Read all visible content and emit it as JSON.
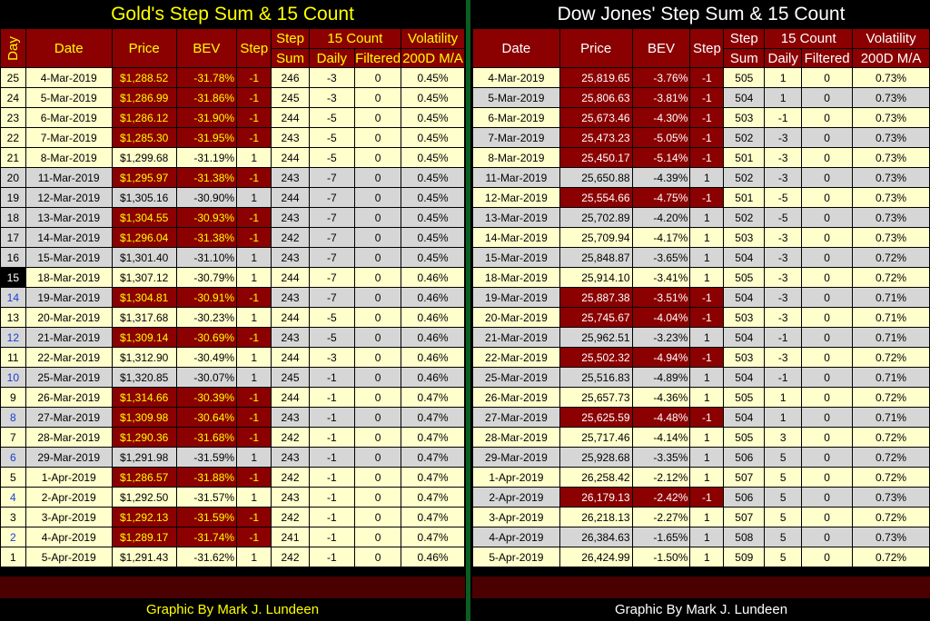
{
  "gold": {
    "title": "Gold's Step Sum & 15 Count",
    "headers": {
      "day": "Day",
      "date": "Date",
      "price": "Price",
      "bev": "BEV",
      "step": "Step",
      "step_sum_1": "Step",
      "step_sum_2": "Sum",
      "count_group": "15 Count",
      "daily": "Daily",
      "filtered": "Filtered",
      "vol_1": "Volatility",
      "vol_2": "200D M/A"
    },
    "rows": [
      {
        "day": "25",
        "date": "4-Mar-2019",
        "price": "$1,288.52",
        "bev": "-31.78%",
        "step": "-1",
        "sum": "246",
        "daily": "-3",
        "filtered": "0",
        "vol": "0.45%"
      },
      {
        "day": "24",
        "date": "5-Mar-2019",
        "price": "$1,286.99",
        "bev": "-31.86%",
        "step": "-1",
        "sum": "245",
        "daily": "-3",
        "filtered": "0",
        "vol": "0.45%"
      },
      {
        "day": "23",
        "date": "6-Mar-2019",
        "price": "$1,286.12",
        "bev": "-31.90%",
        "step": "-1",
        "sum": "244",
        "daily": "-5",
        "filtered": "0",
        "vol": "0.45%"
      },
      {
        "day": "22",
        "date": "7-Mar-2019",
        "price": "$1,285.30",
        "bev": "-31.95%",
        "step": "-1",
        "sum": "243",
        "daily": "-5",
        "filtered": "0",
        "vol": "0.45%"
      },
      {
        "day": "21",
        "date": "8-Mar-2019",
        "price": "$1,299.68",
        "bev": "-31.19%",
        "step": "1",
        "sum": "244",
        "daily": "-5",
        "filtered": "0",
        "vol": "0.45%"
      },
      {
        "day": "20",
        "date": "11-Mar-2019",
        "price": "$1,295.97",
        "bev": "-31.38%",
        "step": "-1",
        "sum": "243",
        "daily": "-7",
        "filtered": "0",
        "vol": "0.45%"
      },
      {
        "day": "19",
        "date": "12-Mar-2019",
        "price": "$1,305.16",
        "bev": "-30.90%",
        "step": "1",
        "sum": "244",
        "daily": "-7",
        "filtered": "0",
        "vol": "0.45%"
      },
      {
        "day": "18",
        "date": "13-Mar-2019",
        "price": "$1,304.55",
        "bev": "-30.93%",
        "step": "-1",
        "sum": "243",
        "daily": "-7",
        "filtered": "0",
        "vol": "0.45%"
      },
      {
        "day": "17",
        "date": "14-Mar-2019",
        "price": "$1,296.04",
        "bev": "-31.38%",
        "step": "-1",
        "sum": "242",
        "daily": "-7",
        "filtered": "0",
        "vol": "0.45%"
      },
      {
        "day": "16",
        "date": "15-Mar-2019",
        "price": "$1,301.40",
        "bev": "-31.10%",
        "step": "1",
        "sum": "243",
        "daily": "-7",
        "filtered": "0",
        "vol": "0.45%"
      },
      {
        "day": "15",
        "date": "18-Mar-2019",
        "price": "$1,307.12",
        "bev": "-30.79%",
        "step": "1",
        "sum": "244",
        "daily": "-7",
        "filtered": "0",
        "vol": "0.46%"
      },
      {
        "day": "14",
        "date": "19-Mar-2019",
        "price": "$1,304.81",
        "bev": "-30.91%",
        "step": "-1",
        "sum": "243",
        "daily": "-7",
        "filtered": "0",
        "vol": "0.46%"
      },
      {
        "day": "13",
        "date": "20-Mar-2019",
        "price": "$1,317.68",
        "bev": "-30.23%",
        "step": "1",
        "sum": "244",
        "daily": "-5",
        "filtered": "0",
        "vol": "0.46%"
      },
      {
        "day": "12",
        "date": "21-Mar-2019",
        "price": "$1,309.14",
        "bev": "-30.69%",
        "step": "-1",
        "sum": "243",
        "daily": "-5",
        "filtered": "0",
        "vol": "0.46%"
      },
      {
        "day": "11",
        "date": "22-Mar-2019",
        "price": "$1,312.90",
        "bev": "-30.49%",
        "step": "1",
        "sum": "244",
        "daily": "-3",
        "filtered": "0",
        "vol": "0.46%"
      },
      {
        "day": "10",
        "date": "25-Mar-2019",
        "price": "$1,320.85",
        "bev": "-30.07%",
        "step": "1",
        "sum": "245",
        "daily": "-1",
        "filtered": "0",
        "vol": "0.46%"
      },
      {
        "day": "9",
        "date": "26-Mar-2019",
        "price": "$1,314.66",
        "bev": "-30.39%",
        "step": "-1",
        "sum": "244",
        "daily": "-1",
        "filtered": "0",
        "vol": "0.47%"
      },
      {
        "day": "8",
        "date": "27-Mar-2019",
        "price": "$1,309.98",
        "bev": "-30.64%",
        "step": "-1",
        "sum": "243",
        "daily": "-1",
        "filtered": "0",
        "vol": "0.47%"
      },
      {
        "day": "7",
        "date": "28-Mar-2019",
        "price": "$1,290.36",
        "bev": "-31.68%",
        "step": "-1",
        "sum": "242",
        "daily": "-1",
        "filtered": "0",
        "vol": "0.47%"
      },
      {
        "day": "6",
        "date": "29-Mar-2019",
        "price": "$1,291.98",
        "bev": "-31.59%",
        "step": "1",
        "sum": "243",
        "daily": "-1",
        "filtered": "0",
        "vol": "0.47%"
      },
      {
        "day": "5",
        "date": "1-Apr-2019",
        "price": "$1,286.57",
        "bev": "-31.88%",
        "step": "-1",
        "sum": "242",
        "daily": "-1",
        "filtered": "0",
        "vol": "0.47%"
      },
      {
        "day": "4",
        "date": "2-Apr-2019",
        "price": "$1,292.50",
        "bev": "-31.57%",
        "step": "1",
        "sum": "243",
        "daily": "-1",
        "filtered": "0",
        "vol": "0.47%"
      },
      {
        "day": "3",
        "date": "3-Apr-2019",
        "price": "$1,292.13",
        "bev": "-31.59%",
        "step": "-1",
        "sum": "242",
        "daily": "-1",
        "filtered": "0",
        "vol": "0.47%"
      },
      {
        "day": "2",
        "date": "4-Apr-2019",
        "price": "$1,289.17",
        "bev": "-31.74%",
        "step": "-1",
        "sum": "241",
        "daily": "-1",
        "filtered": "0",
        "vol": "0.47%"
      },
      {
        "day": "1",
        "date": "5-Apr-2019",
        "price": "$1,291.43",
        "bev": "-31.62%",
        "step": "1",
        "sum": "242",
        "daily": "-1",
        "filtered": "0",
        "vol": "0.46%"
      }
    ],
    "footer": "Graphic By Mark J. Lundeen"
  },
  "dow": {
    "title": "Dow Jones' Step Sum & 15 Count",
    "headers": {
      "date": "Date",
      "price": "Price",
      "bev": "BEV",
      "step": "Step",
      "step_sum_1": "Step",
      "step_sum_2": "Sum",
      "count_group": "15 Count",
      "daily": "Daily",
      "filtered": "Filtered",
      "vol_1": "Volatility",
      "vol_2": "200D M/A"
    },
    "rows": [
      {
        "date": "4-Mar-2019",
        "price": "25,819.65",
        "bev": "-3.76%",
        "step": "-1",
        "sum": "505",
        "daily": "1",
        "filtered": "0",
        "vol": "0.73%"
      },
      {
        "date": "5-Mar-2019",
        "price": "25,806.63",
        "bev": "-3.81%",
        "step": "-1",
        "sum": "504",
        "daily": "1",
        "filtered": "0",
        "vol": "0.73%"
      },
      {
        "date": "6-Mar-2019",
        "price": "25,673.46",
        "bev": "-4.30%",
        "step": "-1",
        "sum": "503",
        "daily": "-1",
        "filtered": "0",
        "vol": "0.73%"
      },
      {
        "date": "7-Mar-2019",
        "price": "25,473.23",
        "bev": "-5.05%",
        "step": "-1",
        "sum": "502",
        "daily": "-3",
        "filtered": "0",
        "vol": "0.73%"
      },
      {
        "date": "8-Mar-2019",
        "price": "25,450.17",
        "bev": "-5.14%",
        "step": "-1",
        "sum": "501",
        "daily": "-3",
        "filtered": "0",
        "vol": "0.73%"
      },
      {
        "date": "11-Mar-2019",
        "price": "25,650.88",
        "bev": "-4.39%",
        "step": "1",
        "sum": "502",
        "daily": "-3",
        "filtered": "0",
        "vol": "0.73%"
      },
      {
        "date": "12-Mar-2019",
        "price": "25,554.66",
        "bev": "-4.75%",
        "step": "-1",
        "sum": "501",
        "daily": "-5",
        "filtered": "0",
        "vol": "0.73%"
      },
      {
        "date": "13-Mar-2019",
        "price": "25,702.89",
        "bev": "-4.20%",
        "step": "1",
        "sum": "502",
        "daily": "-5",
        "filtered": "0",
        "vol": "0.73%"
      },
      {
        "date": "14-Mar-2019",
        "price": "25,709.94",
        "bev": "-4.17%",
        "step": "1",
        "sum": "503",
        "daily": "-3",
        "filtered": "0",
        "vol": "0.73%"
      },
      {
        "date": "15-Mar-2019",
        "price": "25,848.87",
        "bev": "-3.65%",
        "step": "1",
        "sum": "504",
        "daily": "-3",
        "filtered": "0",
        "vol": "0.72%"
      },
      {
        "date": "18-Mar-2019",
        "price": "25,914.10",
        "bev": "-3.41%",
        "step": "1",
        "sum": "505",
        "daily": "-3",
        "filtered": "0",
        "vol": "0.72%"
      },
      {
        "date": "19-Mar-2019",
        "price": "25,887.38",
        "bev": "-3.51%",
        "step": "-1",
        "sum": "504",
        "daily": "-3",
        "filtered": "0",
        "vol": "0.71%"
      },
      {
        "date": "20-Mar-2019",
        "price": "25,745.67",
        "bev": "-4.04%",
        "step": "-1",
        "sum": "503",
        "daily": "-3",
        "filtered": "0",
        "vol": "0.71%"
      },
      {
        "date": "21-Mar-2019",
        "price": "25,962.51",
        "bev": "-3.23%",
        "step": "1",
        "sum": "504",
        "daily": "-1",
        "filtered": "0",
        "vol": "0.71%"
      },
      {
        "date": "22-Mar-2019",
        "price": "25,502.32",
        "bev": "-4.94%",
        "step": "-1",
        "sum": "503",
        "daily": "-3",
        "filtered": "0",
        "vol": "0.72%"
      },
      {
        "date": "25-Mar-2019",
        "price": "25,516.83",
        "bev": "-4.89%",
        "step": "1",
        "sum": "504",
        "daily": "-1",
        "filtered": "0",
        "vol": "0.71%"
      },
      {
        "date": "26-Mar-2019",
        "price": "25,657.73",
        "bev": "-4.36%",
        "step": "1",
        "sum": "505",
        "daily": "1",
        "filtered": "0",
        "vol": "0.72%"
      },
      {
        "date": "27-Mar-2019",
        "price": "25,625.59",
        "bev": "-4.48%",
        "step": "-1",
        "sum": "504",
        "daily": "1",
        "filtered": "0",
        "vol": "0.71%"
      },
      {
        "date": "28-Mar-2019",
        "price": "25,717.46",
        "bev": "-4.14%",
        "step": "1",
        "sum": "505",
        "daily": "3",
        "filtered": "0",
        "vol": "0.72%"
      },
      {
        "date": "29-Mar-2019",
        "price": "25,928.68",
        "bev": "-3.35%",
        "step": "1",
        "sum": "506",
        "daily": "5",
        "filtered": "0",
        "vol": "0.72%"
      },
      {
        "date": "1-Apr-2019",
        "price": "26,258.42",
        "bev": "-2.12%",
        "step": "1",
        "sum": "507",
        "daily": "5",
        "filtered": "0",
        "vol": "0.72%"
      },
      {
        "date": "2-Apr-2019",
        "price": "26,179.13",
        "bev": "-2.42%",
        "step": "-1",
        "sum": "506",
        "daily": "5",
        "filtered": "0",
        "vol": "0.73%"
      },
      {
        "date": "3-Apr-2019",
        "price": "26,218.13",
        "bev": "-2.27%",
        "step": "1",
        "sum": "507",
        "daily": "5",
        "filtered": "0",
        "vol": "0.72%"
      },
      {
        "date": "4-Apr-2019",
        "price": "26,384.63",
        "bev": "-1.65%",
        "step": "1",
        "sum": "508",
        "daily": "5",
        "filtered": "0",
        "vol": "0.73%"
      },
      {
        "date": "5-Apr-2019",
        "price": "26,424.99",
        "bev": "-1.50%",
        "step": "1",
        "sum": "509",
        "daily": "5",
        "filtered": "0",
        "vol": "0.72%"
      }
    ],
    "footer": "Graphic By Mark J. Lundeen"
  },
  "colors": {
    "header_bg": "#8b0000",
    "negative_cell_bg": "#8b0000",
    "gold_title": "#ffff00",
    "row_light": "#ffffcc",
    "row_gray": "#d6d6d6",
    "divider": "#0b5e22"
  }
}
